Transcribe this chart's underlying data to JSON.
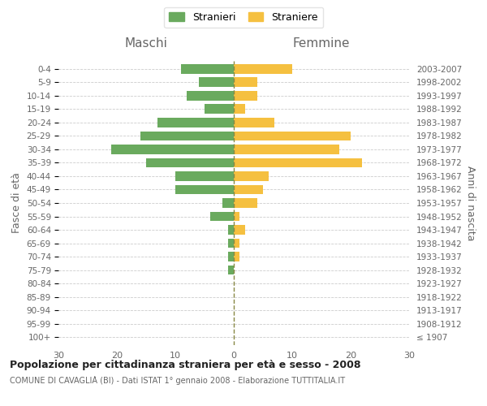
{
  "age_groups": [
    "100+",
    "95-99",
    "90-94",
    "85-89",
    "80-84",
    "75-79",
    "70-74",
    "65-69",
    "60-64",
    "55-59",
    "50-54",
    "45-49",
    "40-44",
    "35-39",
    "30-34",
    "25-29",
    "20-24",
    "15-19",
    "10-14",
    "5-9",
    "0-4"
  ],
  "birth_years": [
    "≤ 1907",
    "1908-1912",
    "1913-1917",
    "1918-1922",
    "1923-1927",
    "1928-1932",
    "1933-1937",
    "1938-1942",
    "1943-1947",
    "1948-1952",
    "1953-1957",
    "1958-1962",
    "1963-1967",
    "1968-1972",
    "1973-1977",
    "1978-1982",
    "1983-1987",
    "1988-1992",
    "1993-1997",
    "1998-2002",
    "2003-2007"
  ],
  "maschi": [
    0,
    0,
    0,
    0,
    0,
    1,
    1,
    1,
    1,
    4,
    2,
    10,
    10,
    15,
    21,
    16,
    13,
    5,
    8,
    6,
    9
  ],
  "femmine": [
    0,
    0,
    0,
    0,
    0,
    0,
    1,
    1,
    2,
    1,
    4,
    5,
    6,
    22,
    18,
    20,
    7,
    2,
    4,
    4,
    10
  ],
  "maschi_color": "#6aaa5e",
  "femmine_color": "#f5c040",
  "title": "Popolazione per cittadinanza straniera per età e sesso - 2008",
  "subtitle": "COMUNE DI CAVAGLIÀ (BI) - Dati ISTAT 1° gennaio 2008 - Elaborazione TUTTITALIA.IT",
  "header_left": "Maschi",
  "header_right": "Femmine",
  "ylabel_left": "Fasce di età",
  "ylabel_right": "Anni di nascita",
  "xlim": 30,
  "legend_stranieri": "Stranieri",
  "legend_straniere": "Straniere",
  "background_color": "#ffffff",
  "grid_color": "#cccccc",
  "text_color": "#666666",
  "center_line_color": "#888844"
}
